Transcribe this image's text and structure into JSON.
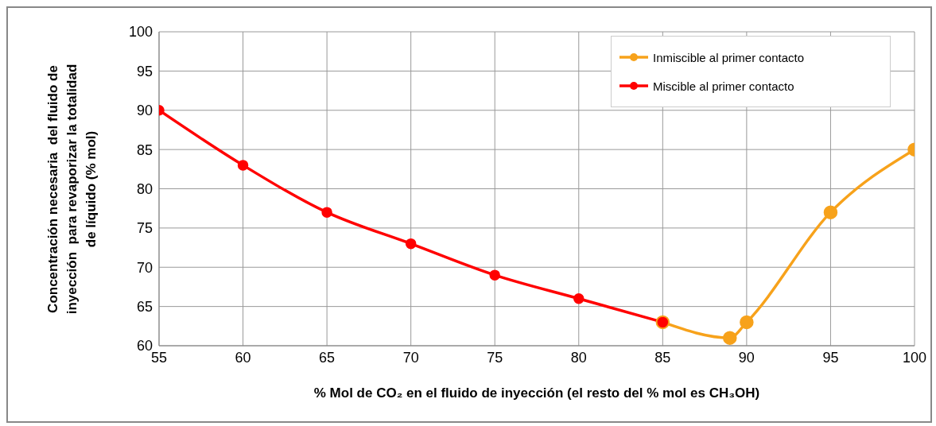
{
  "chart_data": {
    "type": "line",
    "xlabel": "% Mol de CO₂ en el fluido de inyección (el resto del % mol es CH₃OH)",
    "ylabel": "Concentración necesaria  del fluido de inyección  para revaporizar la totalidad de líquido (% mol)",
    "xlim": [
      55,
      100
    ],
    "xticks": [
      55,
      60,
      65,
      70,
      75,
      80,
      85,
      90,
      95,
      100
    ],
    "ylim": [
      60,
      100
    ],
    "yticks": [
      60,
      65,
      70,
      75,
      80,
      85,
      90,
      95,
      100
    ],
    "grid": true,
    "legend": "top right",
    "marker": "circle",
    "line_style": "solid",
    "series": [
      {
        "name": "Inmiscible al primer contacto",
        "color": "#f7a21b",
        "x": [
          85,
          89,
          90,
          95,
          100
        ],
        "values": [
          63,
          61,
          63,
          77,
          85
        ]
      },
      {
        "name": "Miscible al primer contacto",
        "color": "#ff0000",
        "x": [
          55,
          60,
          65,
          70,
          75,
          80,
          85
        ],
        "values": [
          90,
          83,
          77,
          73,
          69,
          66,
          63
        ]
      }
    ]
  }
}
